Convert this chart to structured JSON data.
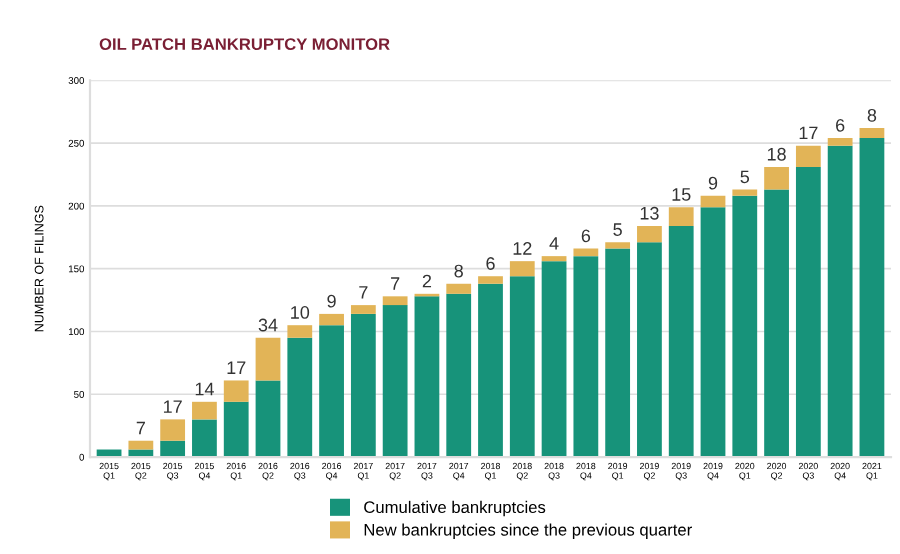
{
  "chart_data": {
    "type": "bar",
    "title": "OIL PATCH BANKRUPTCY MONITOR",
    "ylabel": "NUMBER OF FILINGS",
    "categories": [
      "2015\nQ1",
      "2015\nQ2",
      "2015\nQ3",
      "2015\nQ4",
      "2016\nQ1",
      "2016\nQ2",
      "2016\nQ3",
      "2016\nQ4",
      "2017\nQ1",
      "2017\nQ2",
      "2017\nQ3",
      "2017\nQ4",
      "2018\nQ1",
      "2018\nQ2",
      "2018\nQ3",
      "2018\nQ4",
      "2019\nQ1",
      "2019\nQ2",
      "2019\nQ3",
      "2019\nQ4",
      "2020\nQ1",
      "2020\nQ2",
      "2020\nQ3",
      "2020\nQ4",
      "2021\nQ1"
    ],
    "stacked": true,
    "series": [
      {
        "name": "Cumulative bankruptcies",
        "color": "#17937a",
        "values": [
          6,
          6,
          13,
          30,
          44,
          61,
          95,
          105,
          114,
          121,
          128,
          130,
          138,
          144,
          156,
          160,
          166,
          171,
          184,
          199,
          208,
          213,
          231,
          248,
          254
        ]
      },
      {
        "name": "New bankruptcies since the previous quarter",
        "color": "#e2b457",
        "values": [
          null,
          7,
          17,
          14,
          17,
          34,
          10,
          9,
          7,
          7,
          2,
          8,
          6,
          12,
          4,
          6,
          5,
          13,
          15,
          9,
          5,
          18,
          17,
          6,
          8
        ],
        "value_labels": [
          null,
          "7",
          "17",
          "14",
          "17",
          "34",
          "10",
          "9",
          "7",
          "7",
          "2",
          "8",
          "6",
          "12",
          "4",
          "6",
          "5",
          "13",
          "15",
          "9",
          "5",
          "18",
          "17",
          "6",
          "8"
        ]
      }
    ],
    "ylim": [
      0,
      300
    ],
    "yticks": [
      0,
      50,
      100,
      150,
      200,
      250,
      300
    ],
    "grid": "y",
    "legend": "bottom"
  }
}
